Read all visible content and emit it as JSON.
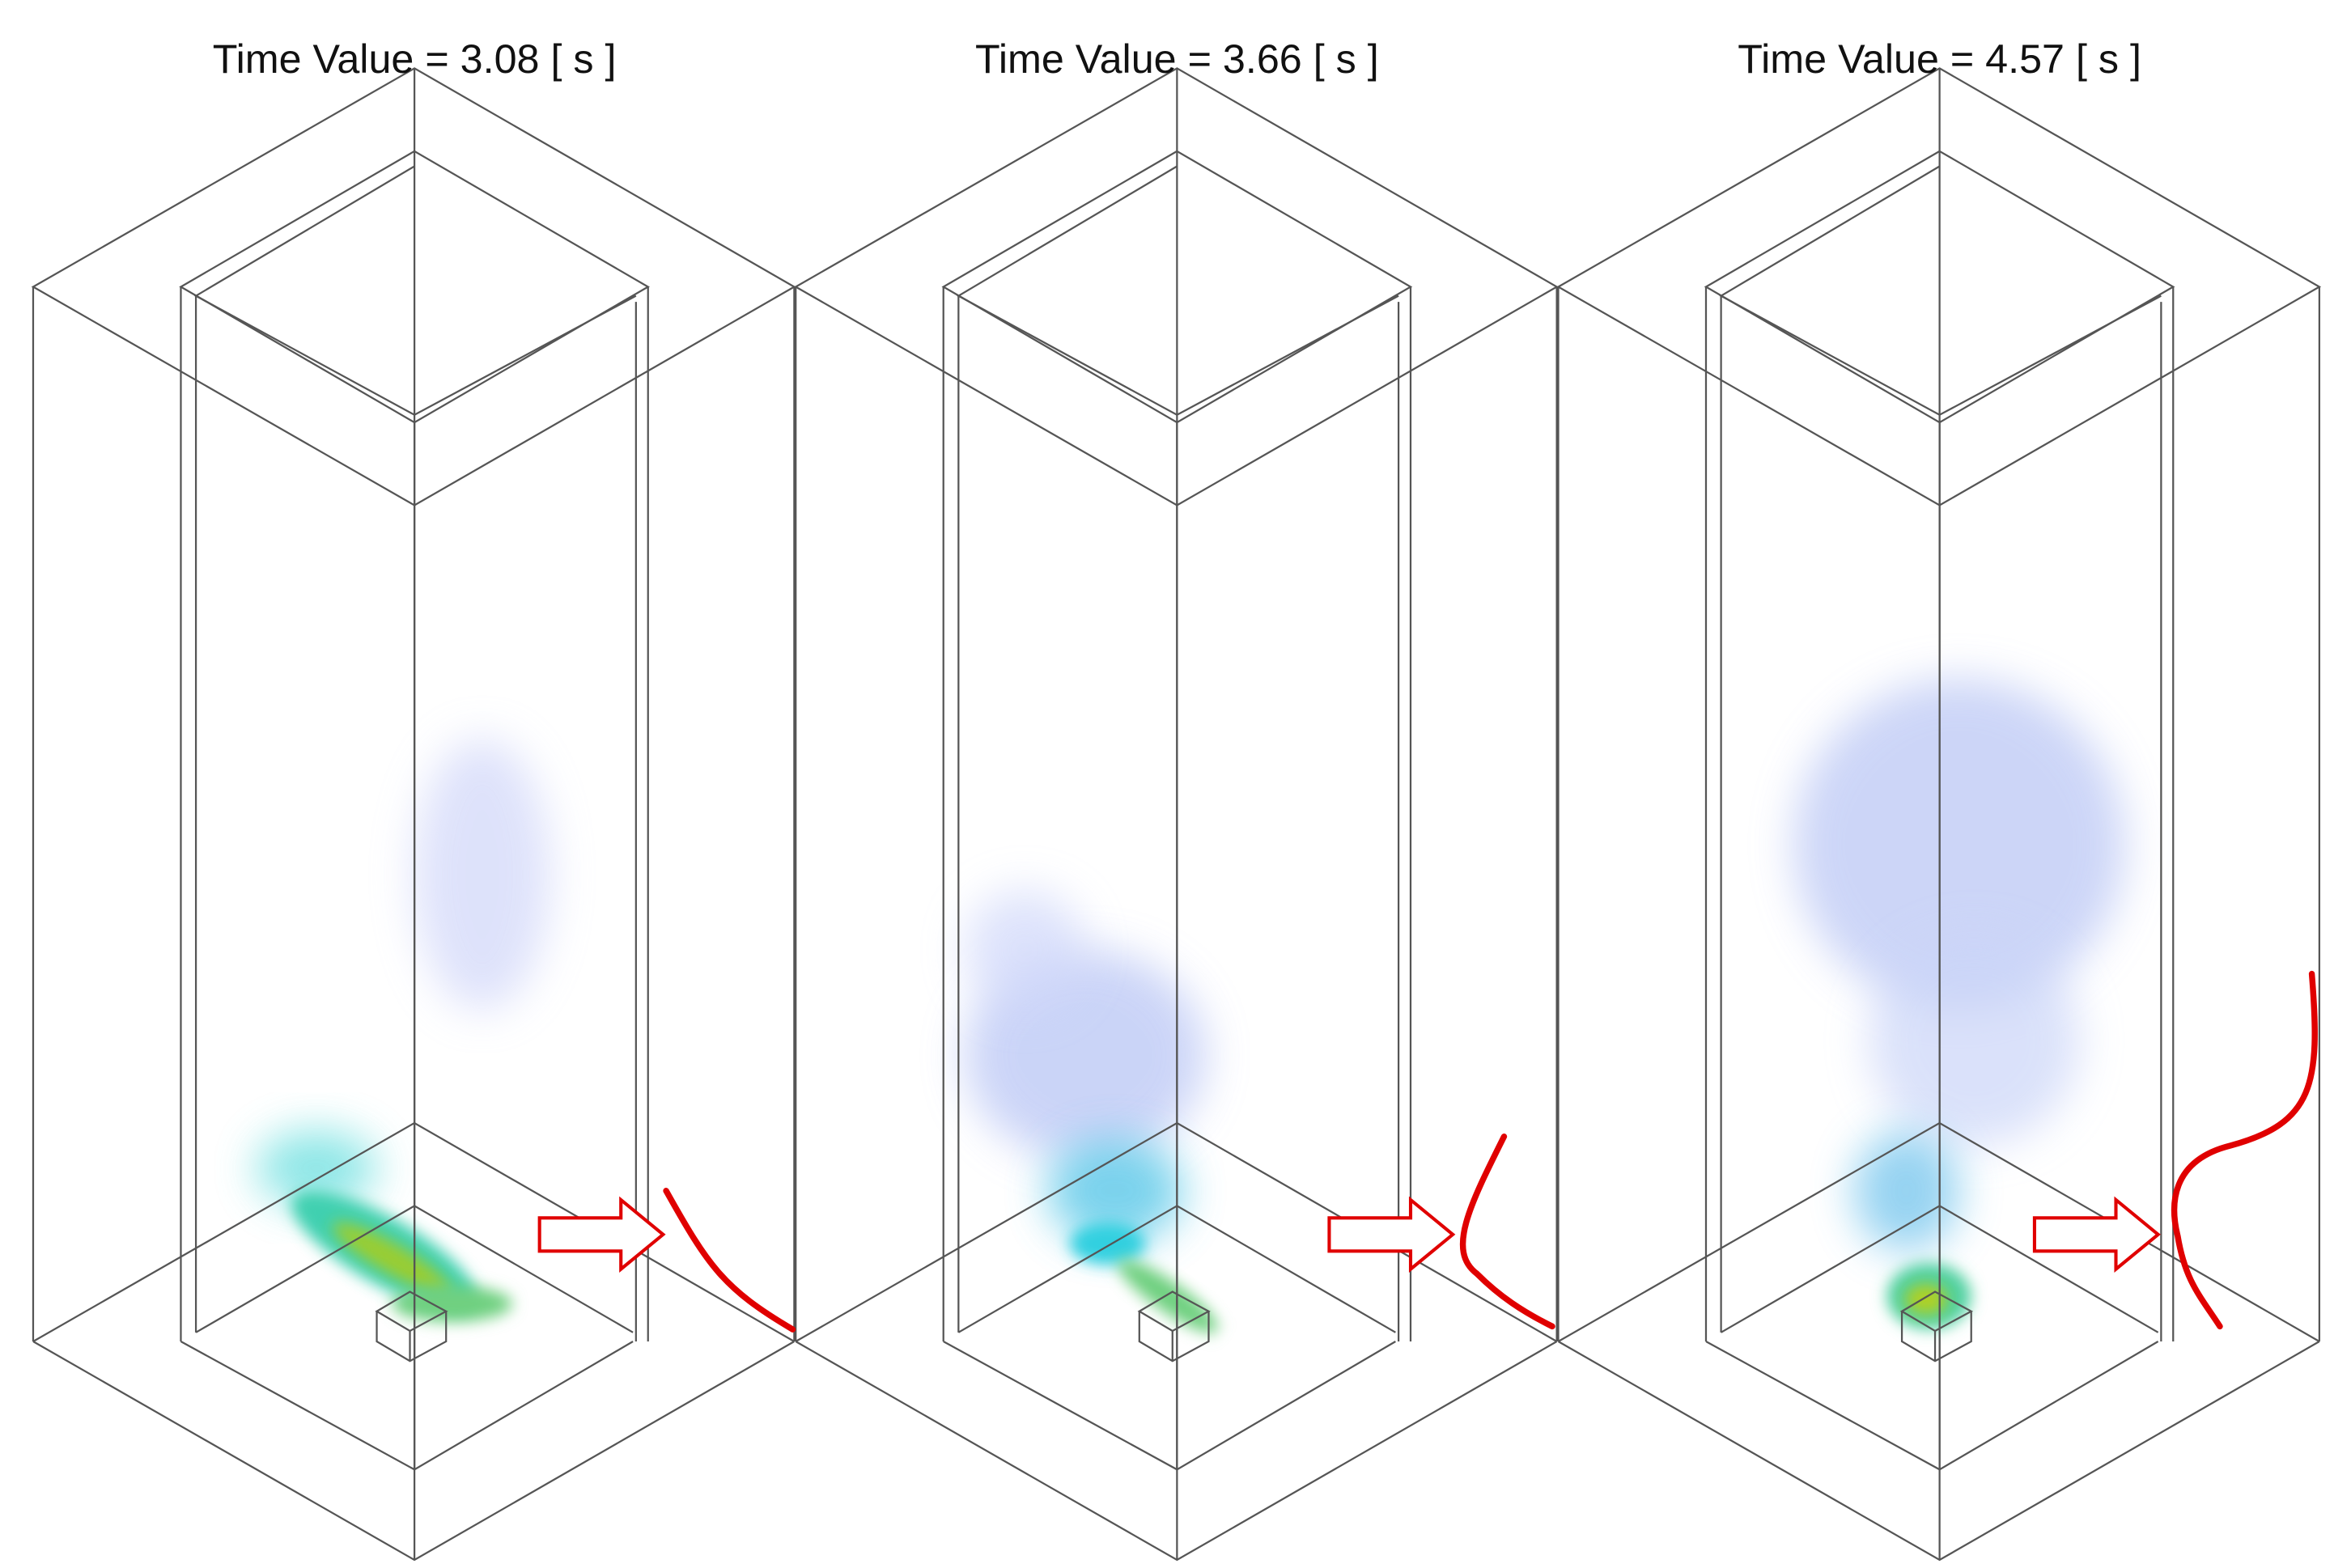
{
  "panels": [
    {
      "title": "Time Value = 3.08 [ s ]"
    },
    {
      "title": "Time Value = 3.66 [ s ]"
    },
    {
      "title": "Time Value = 4.57 [ s ]"
    }
  ]
}
